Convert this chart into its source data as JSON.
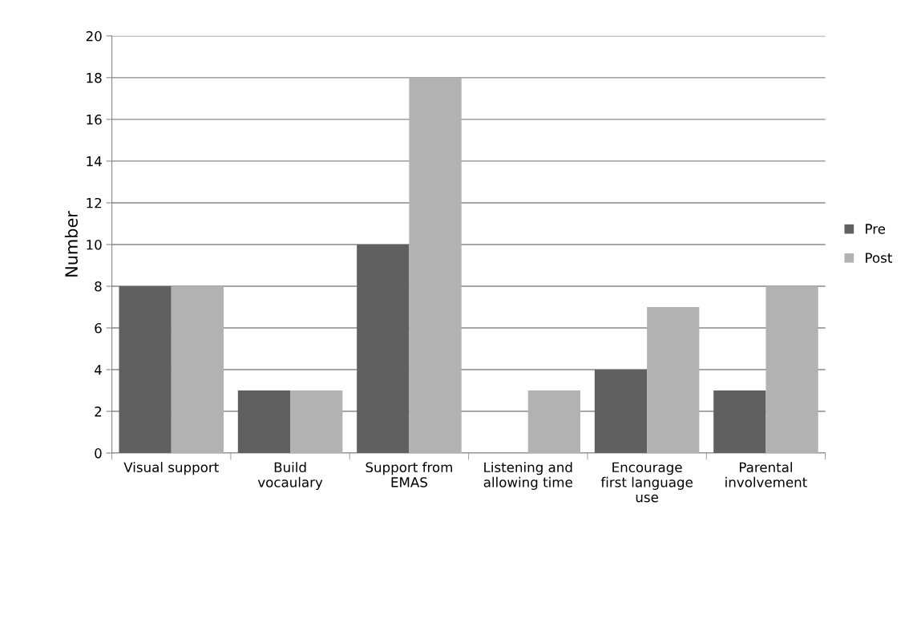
{
  "chart_data": {
    "type": "bar",
    "ylabel": "Number",
    "categories": [
      "Visual support",
      "Build\nvocaulary",
      "Support from\nEMAS",
      "Listening and\nallowing time",
      "Encourage\nfirst language\nuse",
      "Parental\ninvolvement"
    ],
    "series": [
      {
        "name": "Pre",
        "color": "#606060",
        "values": [
          8,
          3,
          10,
          0,
          4,
          3
        ]
      },
      {
        "name": "Post",
        "color": "#b2b2b2",
        "values": [
          8,
          3,
          18,
          3,
          7,
          8
        ]
      }
    ],
    "ylim": [
      0,
      20
    ],
    "yticks": [
      0,
      2,
      4,
      6,
      8,
      10,
      12,
      14,
      16,
      18,
      20
    ],
    "grid": "y",
    "legend": "right"
  }
}
